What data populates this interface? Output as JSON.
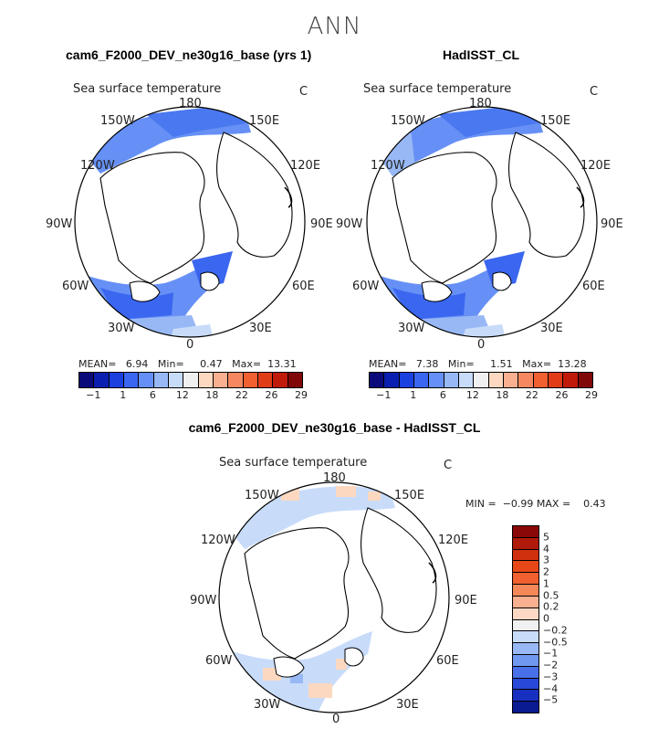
{
  "title": "ANN",
  "panel1": {
    "case": "cam6_F2000_DEV_ne30g16_base (yrs 1)",
    "field": "Sea surface temperature",
    "units": "C",
    "stats": {
      "mean_label": "MEAN=",
      "mean": "6.94",
      "min_label": "Min=",
      "min": "0.47",
      "max_label": "Max=",
      "max": "13.31"
    }
  },
  "panel2": {
    "case": "HadISST_CL",
    "field": "Sea surface temperature",
    "units": "C",
    "stats": {
      "mean_label": "MEAN=",
      "mean": "7.38",
      "min_label": "Min=",
      "min": "1.51",
      "max_label": "Max=",
      "max": "13.28"
    }
  },
  "panel3": {
    "case": "cam6_F2000_DEV_ne30g16_base - HadISST_CL",
    "field": "Sea surface temperature",
    "units": "C",
    "minmax": {
      "min_label": "MIN =",
      "min": "−0.99",
      "max_label": "MAX =",
      "max": "0.43"
    }
  },
  "longitudes": {
    "l180": "180",
    "l150w": "150W",
    "l150e": "150E",
    "l120w": "120W",
    "l120e": "120E",
    "l90w": "90W",
    "l90e": "90E",
    "l60w": "60W",
    "l60e": "60E",
    "l30w": "30W",
    "l30e": "30E",
    "l0": "0"
  },
  "colorbar_top": {
    "colors": [
      "#0a0a7a",
      "#0a1fb0",
      "#1a40e0",
      "#3a66f0",
      "#6690f5",
      "#98b8f5",
      "#c8dcfa",
      "#f0f0f0",
      "#fcd8c0",
      "#f8b090",
      "#f58860",
      "#f06030",
      "#e03c18",
      "#c01a0a",
      "#800808"
    ],
    "tick_labels": [
      "−1",
      "1",
      "6",
      "12",
      "18",
      "22",
      "26",
      "29"
    ]
  },
  "colorbar_diff": {
    "colors": [
      "#8a0808",
      "#b01a0a",
      "#d0300e",
      "#e84818",
      "#f06030",
      "#f58858",
      "#f8b090",
      "#fcd8c4",
      "#f0f0f0",
      "#c8dcfa",
      "#98b8f5",
      "#7098f0",
      "#4870e8",
      "#2848d8",
      "#1830c0",
      "#0a1a90"
    ],
    "tick_labels": [
      "5",
      "4",
      "3",
      "2",
      "1",
      "0.5",
      "0.2",
      "0",
      "−0.2",
      "−0.5",
      "−1",
      "−2",
      "−3",
      "−4",
      "−5"
    ]
  }
}
